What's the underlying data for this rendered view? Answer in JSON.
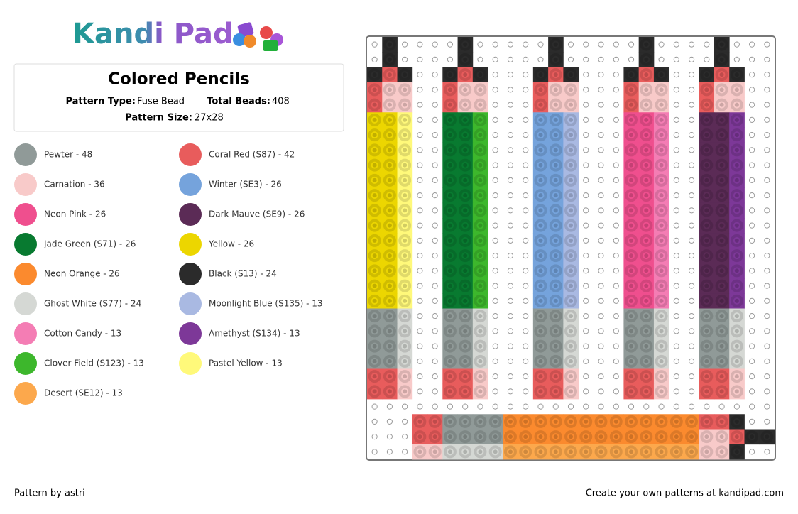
{
  "header": {
    "logo": "Kandi Pad"
  },
  "info": {
    "title": "Colored Pencils",
    "pattern_type_label": "Pattern Type:",
    "pattern_type": "Fuse Bead",
    "total_beads_label": "Total Beads:",
    "total_beads": "408",
    "pattern_size_label": "Pattern Size:",
    "pattern_size": "27x28"
  },
  "legend": {
    "left": [
      {
        "label": "Pewter - 48",
        "color": "#909a98"
      },
      {
        "label": "Carnation - 36",
        "color": "#f8cac9"
      },
      {
        "label": "Neon Pink - 26",
        "color": "#ef4f8e"
      },
      {
        "label": "Jade Green (S71) - 26",
        "color": "#087a30"
      },
      {
        "label": "Neon Orange - 26",
        "color": "#fb8a2e"
      },
      {
        "label": "Ghost White (S77) - 24",
        "color": "#d5d8d4"
      },
      {
        "label": "Cotton Candy - 13",
        "color": "#f47db4"
      },
      {
        "label": "Clover Field (S123) - 13",
        "color": "#3db72c"
      },
      {
        "label": "Desert (SE12) - 13",
        "color": "#fca84c"
      }
    ],
    "right": [
      {
        "label": "Coral Red (S87) - 42",
        "color": "#e85c5c"
      },
      {
        "label": "Winter (SE3) - 26",
        "color": "#75a3dc"
      },
      {
        "label": "Dark Mauve (SE9) - 26",
        "color": "#5b2b56"
      },
      {
        "label": "Yellow - 26",
        "color": "#ecd600"
      },
      {
        "label": "Black (S13) - 24",
        "color": "#2b2b2b"
      },
      {
        "label": "Moonlight Blue (S135) - 13",
        "color": "#a9b9e2"
      },
      {
        "label": "Amethyst (S134) - 13",
        "color": "#7d3898"
      },
      {
        "label": "Pastel Yellow - 13",
        "color": "#fff97a"
      }
    ]
  },
  "footer": {
    "author": "Pattern by astri",
    "promo": "Create your own patterns at kandipad.com"
  }
}
